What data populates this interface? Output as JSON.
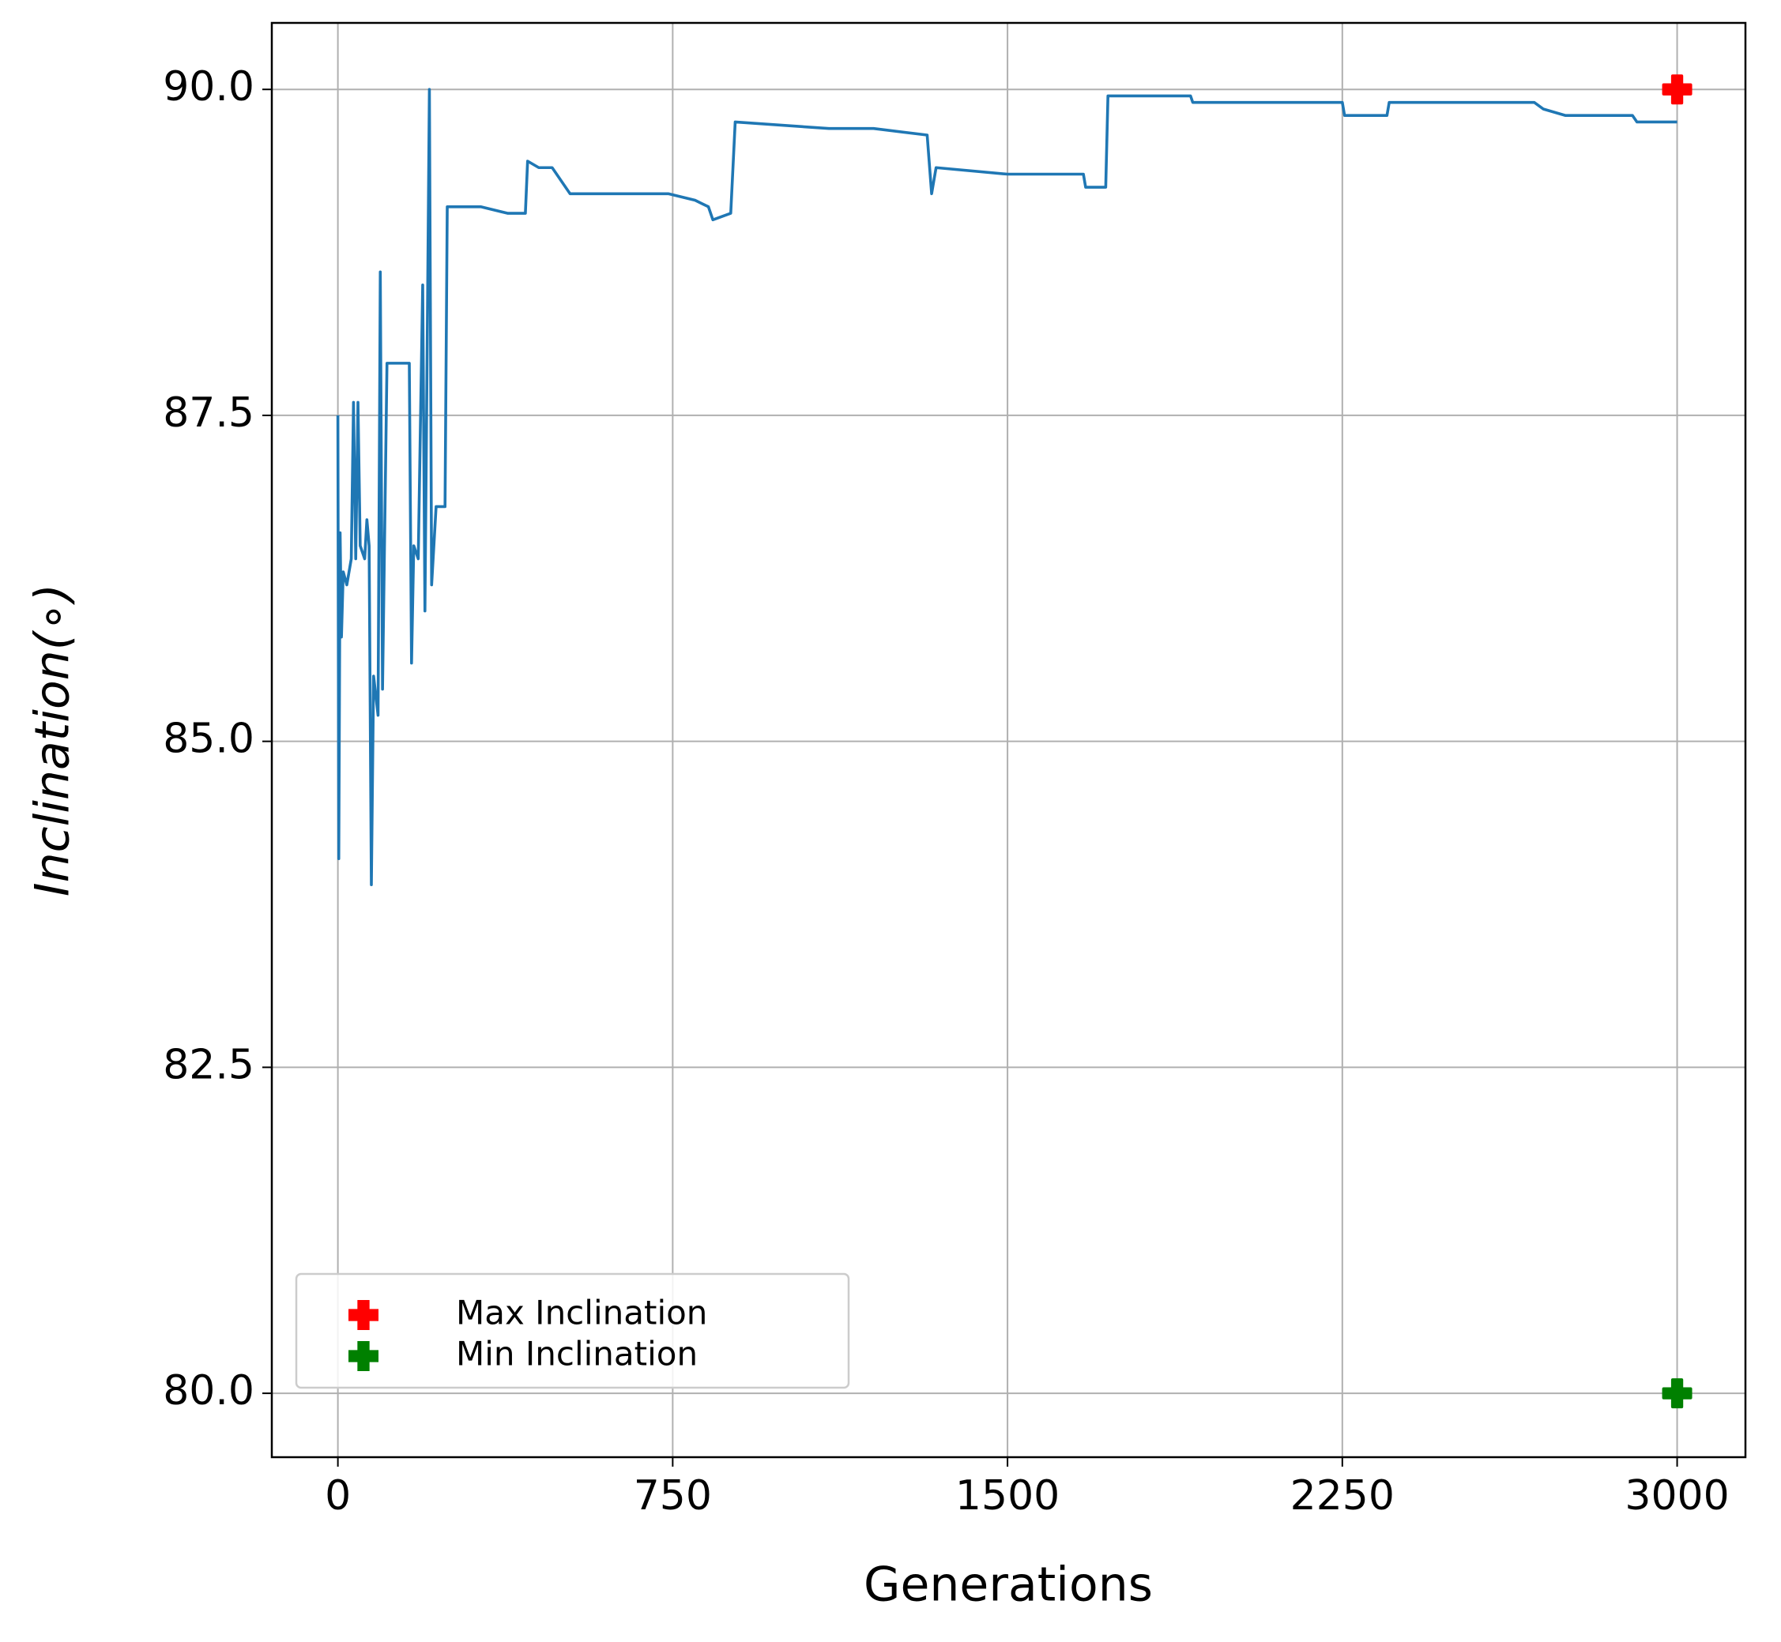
{
  "chart_data": {
    "type": "line",
    "xlabel": "Generations",
    "ylabel": "Inclination(∘)",
    "x": [
      0,
      2,
      5,
      8,
      12,
      20,
      30,
      35,
      40,
      45,
      50,
      60,
      65,
      70,
      75,
      80,
      90,
      95,
      100,
      110,
      160,
      165,
      170,
      180,
      190,
      195,
      205,
      210,
      220,
      240,
      245,
      320,
      380,
      420,
      425,
      450,
      480,
      520,
      740,
      800,
      830,
      840,
      880,
      890,
      1100,
      1200,
      1320,
      1330,
      1340,
      1500,
      1670,
      1675,
      1720,
      1725,
      1910,
      1915,
      2250,
      2255,
      2350,
      2355,
      2680,
      2700,
      2750,
      2900,
      2910,
      3000
    ],
    "values": [
      87.5,
      84.1,
      86.6,
      85.8,
      86.3,
      86.2,
      86.4,
      87.6,
      86.4,
      87.6,
      86.5,
      86.4,
      86.7,
      86.5,
      83.9,
      85.5,
      85.2,
      88.6,
      85.4,
      87.9,
      87.9,
      85.6,
      86.5,
      86.4,
      88.5,
      86.0,
      90.0,
      86.2,
      86.8,
      86.8,
      89.1,
      89.1,
      89.05,
      89.05,
      89.45,
      89.4,
      89.4,
      89.2,
      89.2,
      89.15,
      89.1,
      89.0,
      89.05,
      89.75,
      89.7,
      89.7,
      89.65,
      89.2,
      89.4,
      89.35,
      89.35,
      89.25,
      89.25,
      89.95,
      89.95,
      89.9,
      89.9,
      89.8,
      89.8,
      89.9,
      89.9,
      89.85,
      89.8,
      89.8,
      89.75,
      89.75
    ],
    "color": "#1f77b4",
    "markers": [
      {
        "name": "Max Inclination",
        "color": "#ff0000",
        "x": 3000,
        "y": 90.0
      },
      {
        "name": "Min Inclination",
        "color": "#008000",
        "x": 3000,
        "y": 80.0
      }
    ],
    "xlim": [
      -148,
      3153
    ],
    "ylim": [
      79.51,
      90.51
    ],
    "xticks": [
      0,
      750,
      1500,
      2250,
      3000
    ],
    "yticks": [
      {
        "value": 80,
        "label": "80.0"
      },
      82.5,
      {
        "value": 85,
        "label": "85.0"
      },
      87.5,
      {
        "value": 90,
        "label": "90.0"
      }
    ],
    "grid": true,
    "legend": "lower left"
  }
}
